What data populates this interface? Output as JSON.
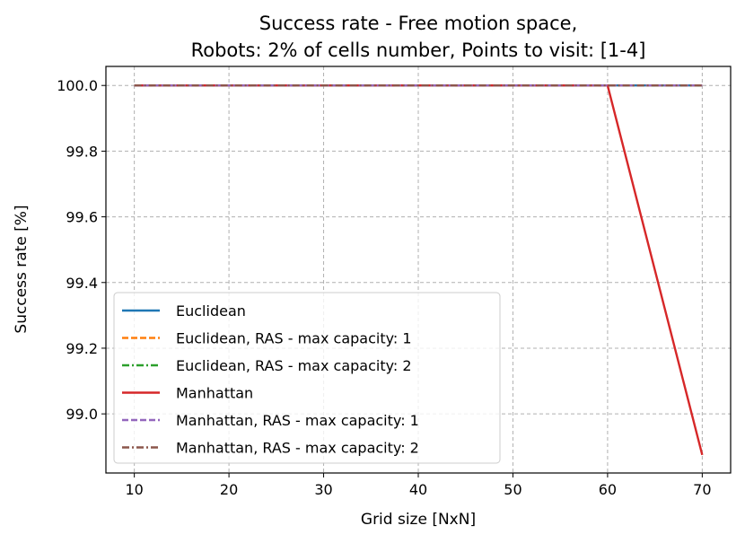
{
  "chart_data": {
    "type": "line",
    "title_lines": [
      "Success rate - Free motion space,",
      "Robots: 2% of cells number, Points to visit: [1-4]"
    ],
    "xlabel": "Grid size [NxN]",
    "ylabel": "Success rate [%]",
    "x": [
      10,
      20,
      30,
      40,
      50,
      60,
      70
    ],
    "xlim": [
      7,
      73
    ],
    "ylim": [
      98.82,
      100.058
    ],
    "xticks": [
      10,
      20,
      30,
      40,
      50,
      60,
      70
    ],
    "xtick_labels": [
      "10",
      "20",
      "30",
      "40",
      "50",
      "60",
      "70"
    ],
    "yticks": [
      99.0,
      99.2,
      99.4,
      99.6,
      99.8,
      100.0
    ],
    "ytick_labels": [
      "99.0",
      "99.2",
      "99.4",
      "99.6",
      "99.8",
      "100.0"
    ],
    "grid": true,
    "legend_position": "lower-left",
    "series": [
      {
        "name": "Euclidean",
        "values": [
          100,
          100,
          100,
          100,
          100,
          100,
          100
        ],
        "color": "#1f77b4",
        "dash": "solid"
      },
      {
        "name": "Euclidean, RAS - max capacity: 1",
        "values": [
          100,
          100,
          100,
          100,
          100,
          100,
          100
        ],
        "color": "#ff7f0e",
        "dash": "dashed"
      },
      {
        "name": "Euclidean, RAS - max capacity: 2",
        "values": [
          100,
          100,
          100,
          100,
          100,
          100,
          100
        ],
        "color": "#2ca02c",
        "dash": "dashdot"
      },
      {
        "name": "Manhattan",
        "values": [
          100,
          100,
          100,
          100,
          100,
          100,
          98.875
        ],
        "color": "#d62728",
        "dash": "solid"
      },
      {
        "name": "Manhattan, RAS - max capacity: 1",
        "values": [
          100,
          100,
          100,
          100,
          100,
          100,
          100
        ],
        "color": "#9467bd",
        "dash": "dashed"
      },
      {
        "name": "Manhattan, RAS - max capacity: 2",
        "values": [
          100,
          100,
          100,
          100,
          100,
          100,
          100
        ],
        "color": "#8c564b",
        "dash": "dashdot"
      }
    ]
  }
}
